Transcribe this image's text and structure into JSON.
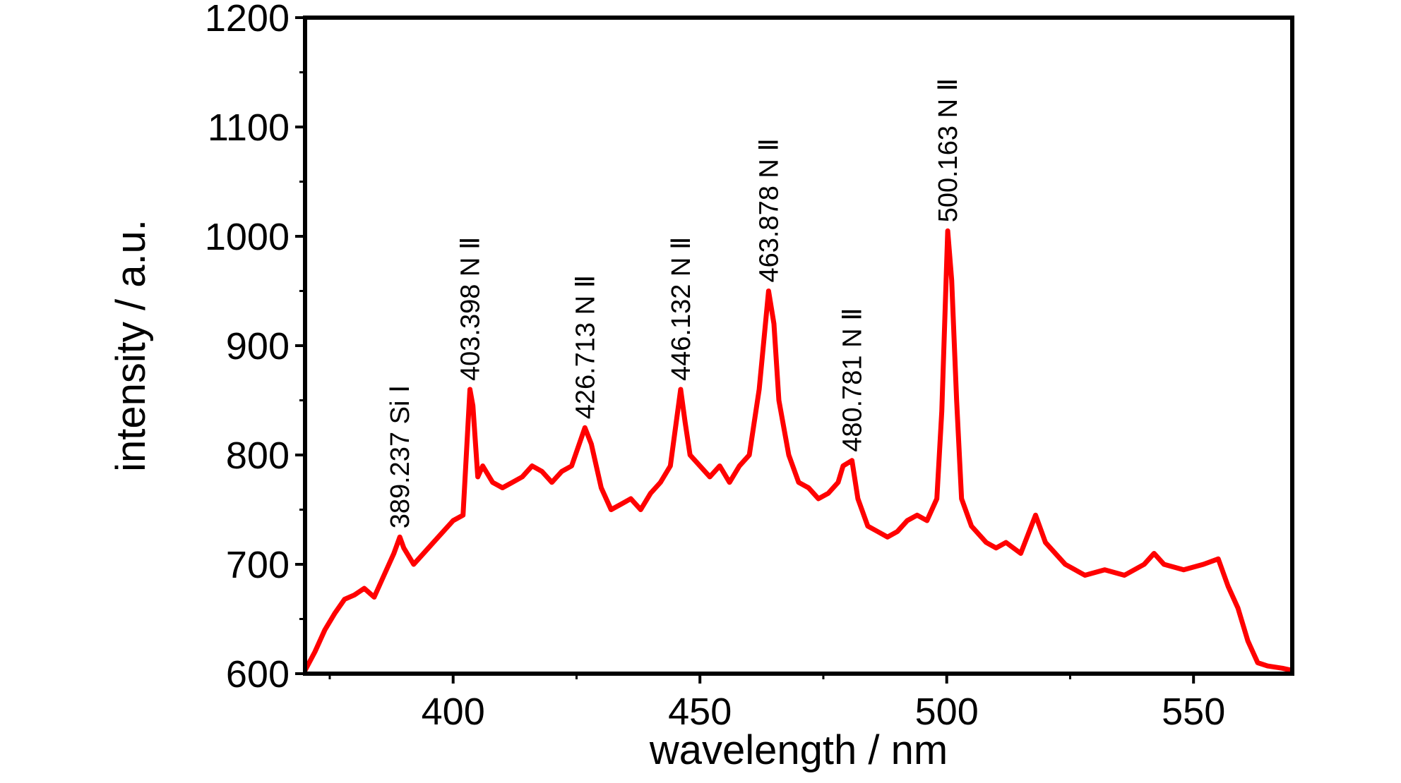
{
  "chart_data": {
    "type": "line",
    "title": "",
    "xlabel": "wavelength / nm",
    "ylabel": "intensity / a.u.",
    "xlim": [
      370,
      570
    ],
    "ylim": [
      600,
      1200
    ],
    "xticks": [
      400,
      450,
      500,
      550
    ],
    "yticks": [
      600,
      700,
      800,
      900,
      1000,
      1100,
      1200
    ],
    "grid": false,
    "legend": "none",
    "series": [
      {
        "color": "#ff0000",
        "x": [
          370,
          372,
          374,
          376,
          378,
          380,
          382,
          384,
          386,
          388,
          389.2,
          390,
          392,
          394,
          396,
          398,
          400,
          402,
          403.4,
          404,
          405,
          406,
          408,
          410,
          412,
          414,
          416,
          418,
          420,
          422,
          424,
          426.7,
          428,
          430,
          432,
          434,
          436,
          438,
          440,
          442,
          444,
          446.1,
          447,
          448,
          450,
          452,
          454,
          456,
          458,
          460,
          462,
          463.9,
          465,
          466,
          468,
          470,
          472,
          474,
          476,
          478,
          479,
          480.8,
          482,
          484,
          486,
          488,
          490,
          492,
          494,
          496,
          498,
          499,
          500.2,
          501,
          502,
          503,
          505,
          508,
          510,
          512,
          515,
          518,
          520,
          524,
          528,
          532,
          536,
          540,
          542,
          544,
          548,
          552,
          555,
          557,
          559,
          561,
          563,
          565,
          568,
          570
        ],
        "y": [
          603,
          620,
          640,
          655,
          668,
          672,
          678,
          670,
          690,
          710,
          725,
          715,
          700,
          710,
          720,
          730,
          740,
          745,
          860,
          845,
          780,
          790,
          775,
          770,
          775,
          780,
          790,
          785,
          775,
          785,
          790,
          825,
          810,
          770,
          750,
          755,
          760,
          750,
          765,
          775,
          790,
          860,
          830,
          800,
          790,
          780,
          790,
          775,
          790,
          800,
          860,
          950,
          920,
          850,
          800,
          775,
          770,
          760,
          765,
          775,
          790,
          795,
          760,
          735,
          730,
          725,
          730,
          740,
          745,
          740,
          760,
          840,
          1005,
          960,
          850,
          760,
          735,
          720,
          715,
          720,
          710,
          745,
          720,
          700,
          690,
          695,
          690,
          700,
          710,
          700,
          695,
          700,
          705,
          680,
          660,
          630,
          610,
          607,
          605,
          603
        ]
      }
    ],
    "annotations": [
      {
        "text": "389.237 Si Ⅰ",
        "x": 389.2,
        "y": 725
      },
      {
        "text": "403.398 N Ⅱ",
        "x": 403.4,
        "y": 860
      },
      {
        "text": "426.713 N Ⅱ",
        "x": 426.7,
        "y": 825
      },
      {
        "text": "446.132 N Ⅱ",
        "x": 446.1,
        "y": 860
      },
      {
        "text": "463.878 N Ⅱ",
        "x": 463.9,
        "y": 950
      },
      {
        "text": "480.781 N Ⅱ",
        "x": 480.8,
        "y": 795
      },
      {
        "text": "500.163 N Ⅱ",
        "x": 500.2,
        "y": 1005
      }
    ]
  }
}
